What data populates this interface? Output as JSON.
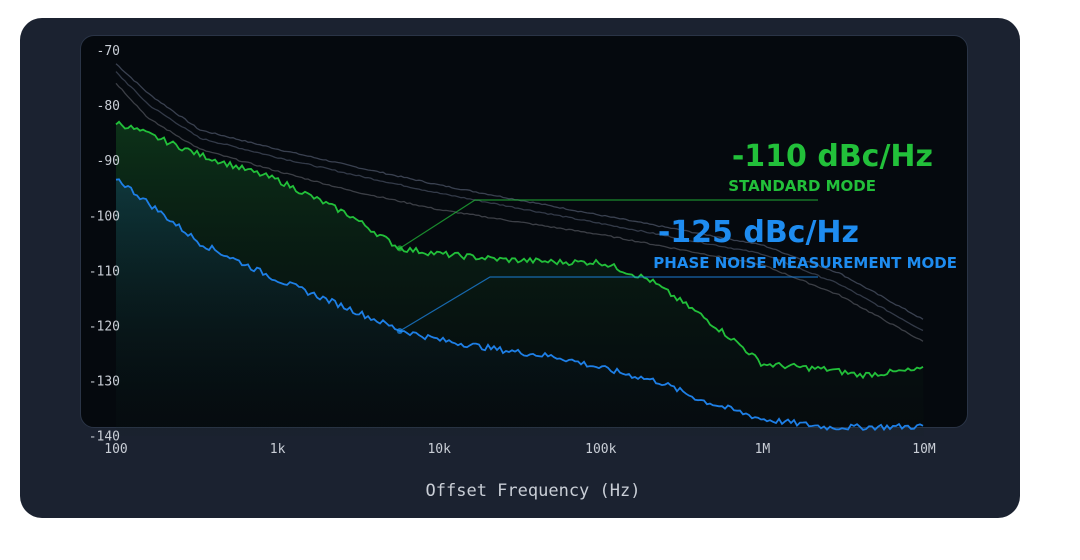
{
  "chart_data": {
    "type": "line",
    "xlabel": "Offset Frequency (Hz)",
    "ylabel": "",
    "xscale": "log",
    "xlim": [
      100,
      10000000
    ],
    "ylim": [
      -140,
      -70
    ],
    "x_ticks": [
      {
        "value": 100,
        "label": "100"
      },
      {
        "value": 1000,
        "label": "1k"
      },
      {
        "value": 10000,
        "label": "10k"
      },
      {
        "value": 100000,
        "label": "100k"
      },
      {
        "value": 1000000,
        "label": "1M"
      },
      {
        "value": 10000000,
        "label": "10M"
      }
    ],
    "y_ticks": [
      -70,
      -80,
      -90,
      -100,
      -110,
      -120,
      -130,
      -140
    ],
    "grid": false,
    "series": [
      {
        "color": "#3a4150",
        "x": [
          100,
          160,
          330,
          1000,
          2800,
          10000,
          100000,
          1000000,
          3000000,
          10000000
        ],
        "y": [
          -72.5,
          -78,
          -84.5,
          -88,
          -91,
          -94.5,
          -100,
          -105.4,
          -110.5,
          -119
        ]
      },
      {
        "color": "#333a48",
        "x": [
          100,
          160,
          330,
          1000,
          2800,
          10000,
          100000,
          1000000,
          3000000,
          10000000
        ],
        "y": [
          -74,
          -80,
          -86,
          -89.5,
          -92.5,
          -96,
          -101.5,
          -107,
          -112.5,
          -121
        ]
      },
      {
        "color": "#3c3f46",
        "x": [
          100,
          160,
          330,
          1000,
          2800,
          10000,
          100000,
          1000000,
          3000000,
          10000000
        ],
        "y": [
          -76,
          -82.5,
          -88,
          -92,
          -95.5,
          -99,
          -103.5,
          -109,
          -114.5,
          -123
        ]
      },
      {
        "color": "#22c03a",
        "x": [
          100,
          162,
          330,
          1000,
          2800,
          5700,
          10000,
          23800,
          55800,
          100000,
          200000,
          411000,
          726000,
          1000000,
          2600000,
          4000000,
          10000000
        ],
        "y": [
          -83.1,
          -85.4,
          -89,
          -93.6,
          -100,
          -106,
          -107,
          -108,
          -108.5,
          -108.5,
          -111.7,
          -118,
          -123.5,
          -127,
          -128,
          -129,
          -128
        ]
      },
      {
        "color": "#1e7fe6",
        "x": [
          100,
          162,
          330,
          1000,
          2800,
          5700,
          10000,
          23800,
          55800,
          100000,
          235000,
          413000,
          1000000,
          2600000,
          10000000
        ],
        "y": [
          -93.2,
          -98,
          -105,
          -111.7,
          -117,
          -120.8,
          -122.6,
          -124.4,
          -125.8,
          -127.7,
          -130.3,
          -133.5,
          -137,
          -138.5,
          -138.3
        ]
      }
    ],
    "annotations": [
      {
        "value": "-110 dBc/Hz",
        "label": "STANDARD MODE",
        "color": "#22c03a",
        "x": 5700,
        "y": -106
      },
      {
        "value": "-125 dBc/Hz",
        "label": "PHASE NOISE MEASUREMENT MODE",
        "color": "#1e8cf0",
        "x": 5700,
        "y": -121
      }
    ]
  }
}
